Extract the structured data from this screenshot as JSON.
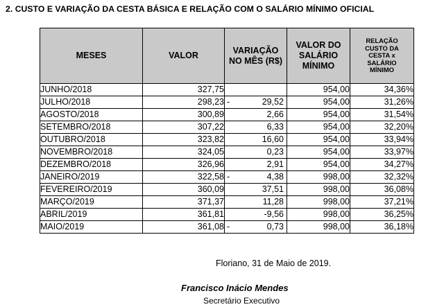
{
  "title": "2. CUSTO E VARIAÇÃO DA CESTA BÁSICA E RELAÇÃO COM O SALÁRIO MÍNIMO OFICIAL",
  "table": {
    "headers": {
      "meses": "MESES",
      "valor": "VALOR",
      "variacao": [
        "VARIAÇÃO",
        "NO MÊS (R$)"
      ],
      "salario": [
        "VALOR DO",
        "SALÁRIO",
        "MÍNIMO"
      ],
      "relacao": [
        "RELAÇÃO",
        "CUSTO DA",
        "CESTA x",
        "SALÁRIO",
        "MÍNIMO"
      ]
    },
    "rows": [
      {
        "mes": "JUNHO/2018",
        "valor": "327,75",
        "sinal": "",
        "variacao": "",
        "salario": "954,00",
        "relacao": "34,36%"
      },
      {
        "mes": "JULHO/2018",
        "valor": "298,23",
        "sinal": "-",
        "variacao": "29,52",
        "salario": "954,00",
        "relacao": "31,26%"
      },
      {
        "mes": "AGOSTO/2018",
        "valor": "300,89",
        "sinal": "",
        "variacao": "2,66",
        "salario": "954,00",
        "relacao": "31,54%"
      },
      {
        "mes": "SETEMBRO/2018",
        "valor": "307,22",
        "sinal": "",
        "variacao": "6,33",
        "salario": "954,00",
        "relacao": "32,20%"
      },
      {
        "mes": "OUTUBRO/2018",
        "valor": "323,82",
        "sinal": "",
        "variacao": "16,60",
        "salario": "954,00",
        "relacao": "33,94%"
      },
      {
        "mes": "NOVEMBRO/2018",
        "valor": "324,05",
        "sinal": "",
        "variacao": "0,23",
        "salario": "954,00",
        "relacao": "33,97%"
      },
      {
        "mes": "DEZEMBRO/2018",
        "valor": "326,96",
        "sinal": "",
        "variacao": "2,91",
        "salario": "954,00",
        "relacao": "34,27%"
      },
      {
        "mes": "JANEIRO/2019",
        "valor": "322,58",
        "sinal": "-",
        "variacao": "4,38",
        "salario": "998,00",
        "relacao": "32,32%"
      },
      {
        "mes": "FEVEREIRO/2019",
        "valor": "360,09",
        "sinal": "",
        "variacao": "37,51",
        "salario": "998,00",
        "relacao": "36,08%"
      },
      {
        "mes": "MARÇO/2019",
        "valor": "371,37",
        "sinal": "",
        "variacao": "11,28",
        "salario": "998,00",
        "relacao": "37,21%"
      },
      {
        "mes": "ABRIL/2019",
        "valor": "361,81",
        "sinal": "",
        "variacao": "-9,56",
        "salario": "998,00",
        "relacao": "36,25%"
      },
      {
        "mes": "MAIO/2019",
        "valor": "361,08",
        "sinal": "-",
        "variacao": "0,73",
        "salario": "998,00",
        "relacao": "36,18%"
      }
    ]
  },
  "footer": {
    "place_date": "Floriano, 31 de Maio de 2019.",
    "signer": "Francisco Inácio Mendes",
    "role": "Secretário Executivo"
  }
}
